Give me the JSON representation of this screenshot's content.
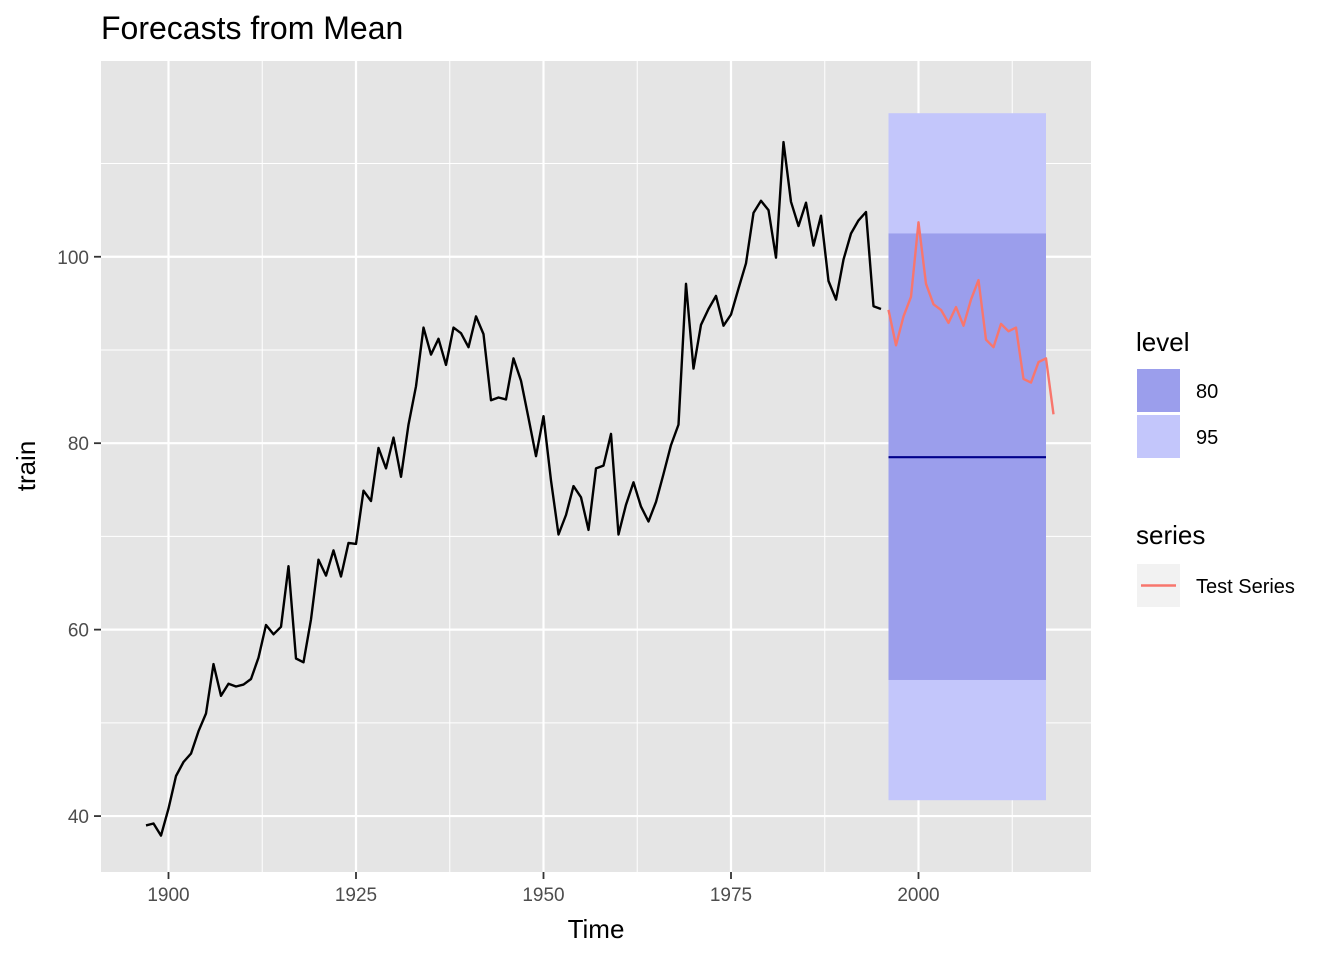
{
  "chart_data": {
    "type": "line",
    "title": "Forecasts from Mean",
    "xlabel": "Time",
    "ylabel": "train",
    "xlim": [
      1891,
      2023
    ],
    "ylim": [
      34,
      121
    ],
    "xticks": [
      1900,
      1925,
      1950,
      1975,
      2000
    ],
    "yticks": [
      40,
      60,
      80,
      100
    ],
    "grid": true,
    "legend_position": "right",
    "colors": {
      "panel": "#e5e5e5",
      "grid": "#ffffff",
      "train": "#000000",
      "test": "#f8766d",
      "forecast": "#00008b",
      "band80": "#9b9eec",
      "band95": "#c3c6fb",
      "legend_key_bg": "#f2f2f2"
    },
    "train": {
      "x": [
        1897,
        1898,
        1899,
        1900,
        1901,
        1902,
        1903,
        1904,
        1905,
        1906,
        1907,
        1908,
        1909,
        1910,
        1911,
        1912,
        1913,
        1914,
        1915,
        1916,
        1917,
        1918,
        1919,
        1920,
        1921,
        1922,
        1923,
        1924,
        1925,
        1926,
        1927,
        1928,
        1929,
        1930,
        1931,
        1932,
        1933,
        1934,
        1935,
        1936,
        1937,
        1938,
        1939,
        1940,
        1941,
        1942,
        1943,
        1944,
        1945,
        1946,
        1947,
        1948,
        1949,
        1950,
        1951,
        1952,
        1953,
        1954,
        1955,
        1956,
        1957,
        1958,
        1959,
        1960,
        1961,
        1962,
        1963,
        1964,
        1965,
        1966,
        1967,
        1968,
        1969,
        1970,
        1971,
        1972,
        1973,
        1974,
        1975,
        1976,
        1977,
        1978,
        1979,
        1980,
        1981,
        1982,
        1983,
        1984,
        1985,
        1986,
        1987,
        1988,
        1989,
        1990,
        1991,
        1992,
        1993,
        1994,
        1995
      ],
      "y": [
        39.0,
        39.2,
        37.9,
        40.8,
        44.3,
        45.8,
        46.7,
        49.1,
        51.0,
        56.3,
        52.9,
        54.2,
        53.9,
        54.1,
        54.7,
        57.0,
        60.5,
        59.5,
        60.3,
        66.8,
        56.9,
        56.5,
        61.1,
        67.5,
        65.8,
        68.5,
        65.7,
        69.3,
        69.2,
        74.9,
        73.8,
        79.5,
        77.3,
        80.6,
        76.4,
        82.0,
        86.1,
        92.4,
        89.5,
        91.2,
        88.4,
        92.4,
        91.8,
        90.3,
        93.6,
        91.7,
        84.6,
        84.9,
        84.7,
        89.1,
        86.7,
        82.7,
        78.6,
        82.9,
        76.0,
        70.2,
        72.3,
        75.4,
        74.2,
        70.7,
        77.3,
        77.6,
        81.0,
        70.2,
        73.4,
        75.8,
        73.2,
        71.6,
        73.7,
        76.7,
        79.8,
        82.0,
        97.1,
        88.0,
        92.7,
        94.4,
        95.8,
        92.6,
        93.8,
        96.6,
        99.3,
        104.7,
        106.0,
        105.0,
        99.9,
        112.3,
        105.9,
        103.3,
        105.8,
        101.2,
        104.4,
        97.4,
        95.4,
        99.7,
        102.5,
        103.9,
        104.8,
        94.7,
        94.4
      ]
    },
    "test": {
      "name": "Test Series",
      "x": [
        1996,
        1997,
        1998,
        1999,
        2000,
        2001,
        2002,
        2003,
        2004,
        2005,
        2006,
        2007,
        2008,
        2009,
        2010,
        2011,
        2012,
        2013,
        2014,
        2015,
        2016,
        2017,
        2018
      ],
      "y": [
        94.3,
        90.5,
        93.6,
        95.7,
        103.7,
        97.1,
        94.9,
        94.3,
        92.9,
        94.6,
        92.6,
        95.4,
        97.5,
        91.1,
        90.3,
        92.8,
        92.0,
        92.4,
        86.9,
        86.5,
        88.7,
        89.1,
        83.1
      ]
    },
    "forecast": {
      "x_start": 1996,
      "x_end": 2017,
      "mean": 78.5,
      "intervals": [
        {
          "level": "80",
          "lower": 54.6,
          "upper": 102.5
        },
        {
          "level": "95",
          "lower": 41.7,
          "upper": 115.4
        }
      ]
    },
    "legend": {
      "level_title": "level",
      "level_items": [
        "80",
        "95"
      ],
      "series_title": "series",
      "series_items": [
        "Test Series"
      ]
    }
  }
}
